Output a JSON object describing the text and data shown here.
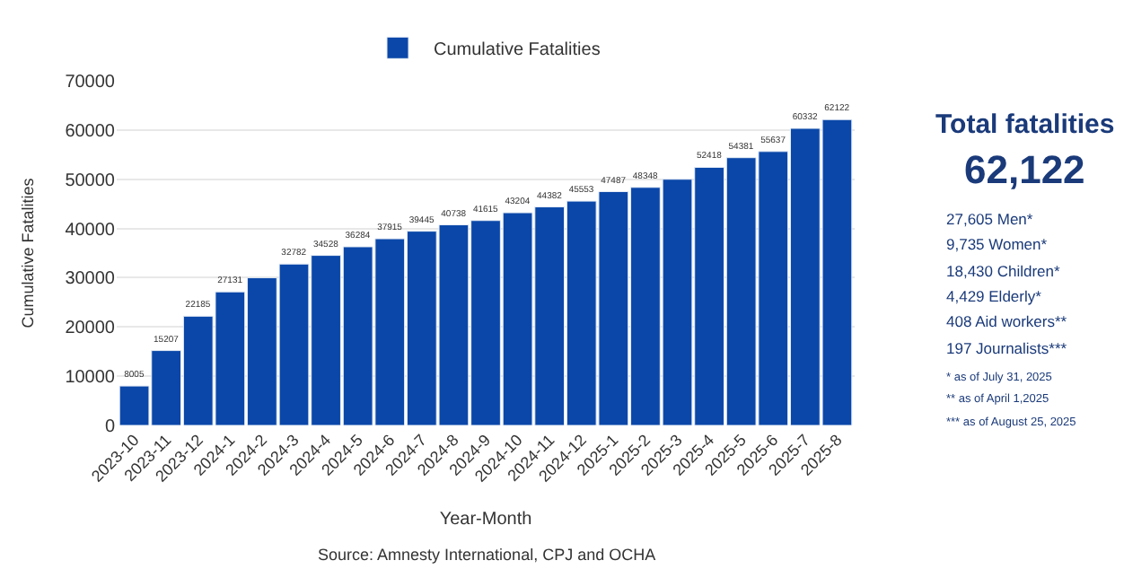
{
  "chart_data": {
    "type": "bar",
    "xlabel": "Year-Month",
    "ylabel": "Cumulative Fatalities",
    "categories": [
      "2023-10",
      "2023-11",
      "2023-12",
      "2024-1",
      "2024-2",
      "2024-3",
      "2024-4",
      "2024-5",
      "2024-6",
      "2024-7",
      "2024-8",
      "2024-9",
      "2024-10",
      "2024-11",
      "2024-12",
      "2025-1",
      "2025-2",
      "2025-3",
      "2025-4",
      "2025-5",
      "2025-6",
      "2025-7",
      "2025-8"
    ],
    "series": [
      {
        "name": "Cumulative Fatalities",
        "color": "#0a47a9",
        "values": [
          8005,
          15207,
          22185,
          27131,
          30000,
          32782,
          34528,
          36284,
          37915,
          39445,
          40738,
          41615,
          43204,
          44382,
          45553,
          47487,
          48348,
          50000,
          52418,
          54381,
          55637,
          60332,
          62122
        ],
        "value_labels": [
          "8005",
          "15207",
          "22185",
          "27131",
          null,
          "32782",
          "34528",
          "36284",
          "37915",
          "39445",
          "40738",
          "41615",
          "43204",
          "44382",
          "45553",
          "47487",
          "48348",
          null,
          "52418",
          "54381",
          "55637",
          "60332",
          "62122"
        ]
      }
    ],
    "ylim": [
      0,
      70000
    ],
    "yticks": [
      0,
      10000,
      20000,
      30000,
      40000,
      50000,
      60000,
      70000
    ],
    "grid": "y",
    "legend": "top",
    "annotations": [
      "Total fatalities",
      "62,122",
      "27,605 Men*",
      "9,735 Women*",
      "18,430 Children*",
      "4,429 Elderly*",
      "408 Aid workers**",
      "197 Journalists***",
      "* as of July 31, 2025",
      "** as of April 1,2025",
      "*** as of August 25, 2025",
      "Source: Amnesty International, CPJ and OCHA"
    ]
  }
}
